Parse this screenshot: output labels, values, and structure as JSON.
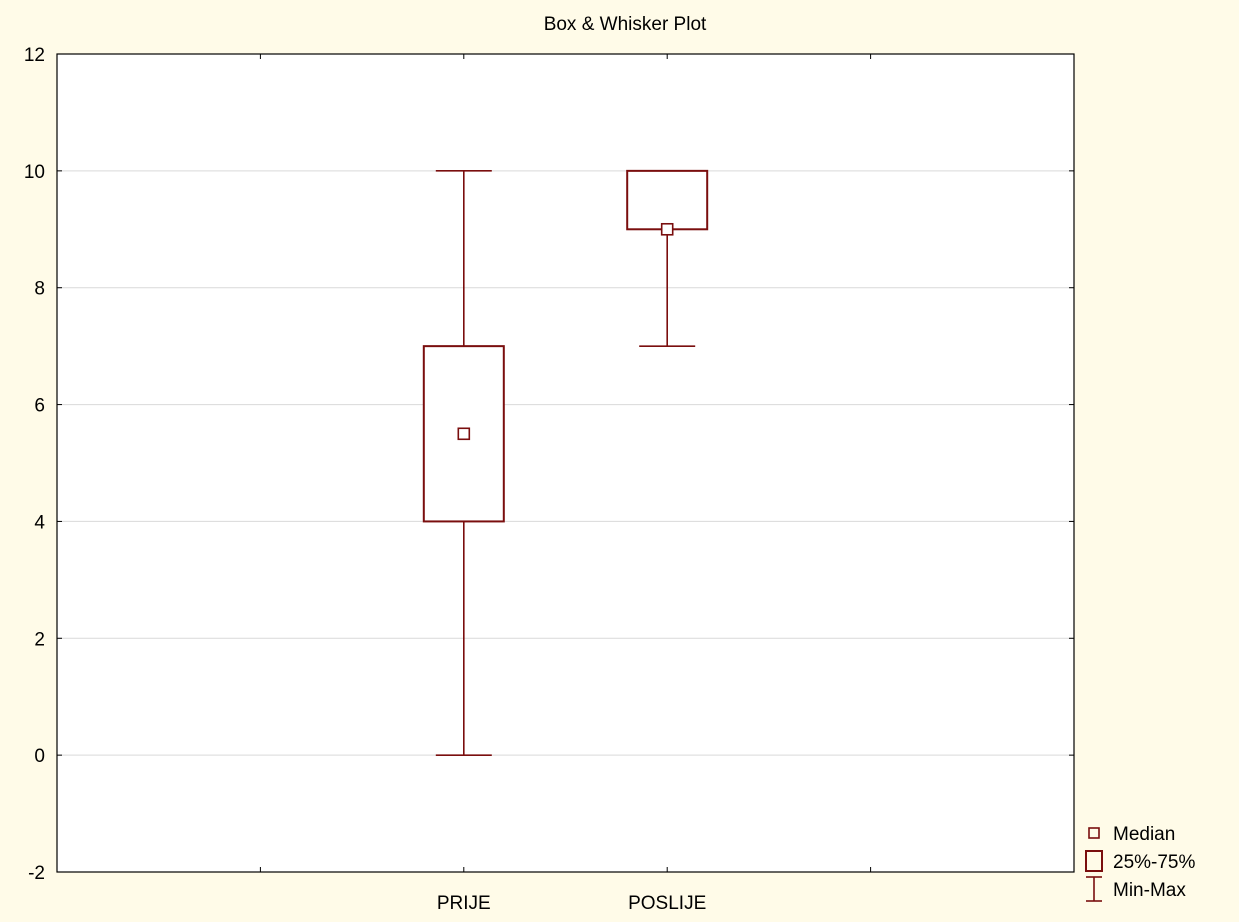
{
  "chart_data": {
    "type": "box",
    "title": "Box & Whisker Plot",
    "xlabel": "",
    "ylabel": "",
    "ylim": [
      -2,
      12
    ],
    "yticks": [
      -2,
      0,
      2,
      4,
      6,
      8,
      10,
      12
    ],
    "categories": [
      "PRIJE",
      "POSLIJE"
    ],
    "boxes": [
      {
        "category": "PRIJE",
        "min": 0,
        "q1": 4,
        "median": 5.5,
        "q3": 7,
        "max": 10
      },
      {
        "category": "POSLIJE",
        "min": 7,
        "q1": 9,
        "median": 9,
        "q3": 10,
        "max": 10
      }
    ],
    "grid": true,
    "legend": {
      "position": "bottom-right",
      "entries": [
        {
          "name": "Median",
          "symbol": "median-marker"
        },
        {
          "name": "25%-75%",
          "symbol": "box"
        },
        {
          "name": "Min-Max",
          "symbol": "whisker"
        }
      ]
    },
    "colors": {
      "series": "#7a0e0e",
      "background": "#fffbe8",
      "plot_background": "#ffffff",
      "grid": "#d9d9d9",
      "axis": "#000000"
    }
  }
}
